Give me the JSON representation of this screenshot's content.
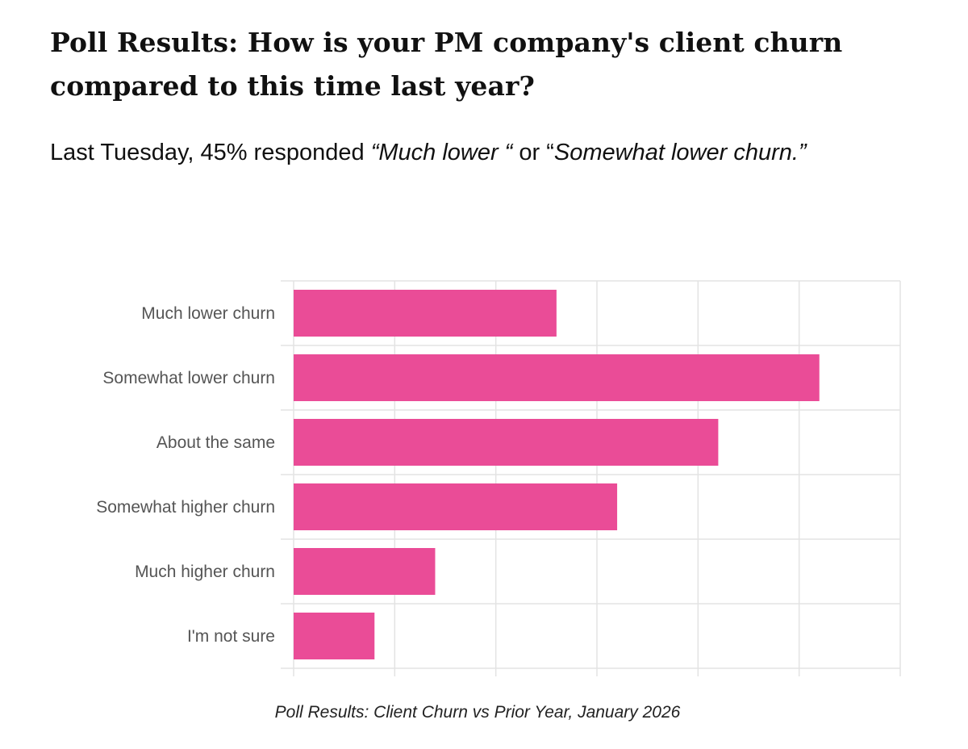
{
  "headline": {
    "line1": "Poll Results: How is your PM company's client churn",
    "line2": "compared to this time last year?"
  },
  "lede": {
    "prefix": "Last Tuesday, 45% responded ",
    "option1": "“Much lower “",
    "joiner": " or “",
    "option2": "Somewhat lower churn.”"
  },
  "chart_data": {
    "type": "bar",
    "orientation": "horizontal",
    "categories": [
      "Much lower churn",
      "Somewhat lower churn",
      "About the same",
      "Somewhat higher churn",
      "Much higher churn",
      "I'm not sure"
    ],
    "values": [
      13,
      26,
      21,
      16,
      7,
      4
    ],
    "xlim": [
      0,
      30
    ],
    "grid": true,
    "legend": "none",
    "bar_color": "#ea4c97",
    "grid_color": "#e3e3e3"
  },
  "caption": "Poll Results: Client Churn vs Prior Year, January 2026"
}
